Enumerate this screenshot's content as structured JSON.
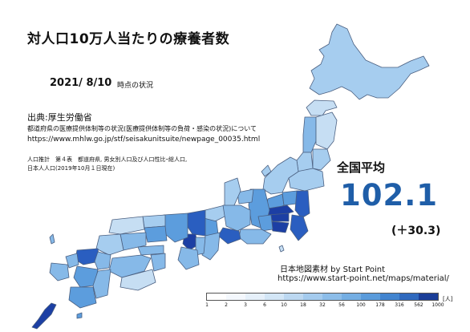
{
  "title": "対人口10万人当たりの療養者数",
  "date": "2021/ 8/10",
  "date_suffix": "時点の状況",
  "source": {
    "label": "出典:厚生労働省",
    "description": "都道府県の医療提供体制等の状況(医療提供体制等の負荷・感染の状況)について",
    "url": "https://www.mhlw.go.jp/stf/seisakunitsuite/newpage_00035.html"
  },
  "population_note": {
    "line1": "人口推計　第４表　都道府県, 男女別人口及び人口性比ｰ総人口,",
    "line2": "日本人人口(2019年10月１日現在)"
  },
  "national_average": {
    "label": "全国平均",
    "value": "102.1",
    "diff": "(＋30.3)"
  },
  "credit": {
    "text": "日本地図素材 by Start Point",
    "url": "https://www.start-point.net/maps/material/"
  },
  "legend": {
    "ticks": [
      "1",
      "2",
      "3",
      "6",
      "10",
      "18",
      "32",
      "56",
      "100",
      "178",
      "316",
      "562",
      "1000"
    ],
    "unit": "[人]",
    "colors": [
      "#ffffff",
      "#f4f8fd",
      "#e6f0fa",
      "#d3e6f6",
      "#bcd8f1",
      "#a4cbee",
      "#8cbde9",
      "#74aee3",
      "#5a9bdb",
      "#4284cf",
      "#2f69be",
      "#1b3e98"
    ]
  },
  "map_colors": {
    "outline": "#4a5f80",
    "pale": "#c6def3",
    "light": "#a6cdef",
    "mid": "#86b9e8",
    "medium": "#5c9ddd",
    "strong": "#3f7fcd",
    "deep": "#2a5ec0",
    "darkest": "#1c3fa4"
  }
}
